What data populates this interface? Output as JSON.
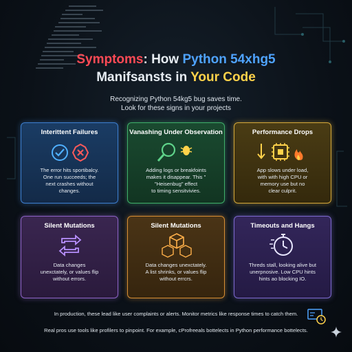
{
  "title": {
    "part1": "Symptoms",
    "part2": ": How ",
    "part3": "Python 54xhg5",
    "part4": "Manifsansts in ",
    "part5": "Your Code"
  },
  "subtitle": {
    "line1": "Recognizing Python 54kg5 bug saves time.",
    "line2": "Look for these signs in your projects"
  },
  "cards": [
    {
      "title": "Interittent Failures",
      "lines": [
        "The error hits sportibalcy.",
        "One run succeeds; the",
        "next crashes without",
        "changes."
      ],
      "icon": "check-x-icon"
    },
    {
      "title": "Vanashing Under Observation",
      "lines": [
        "Adding logs or breakfoints",
        "makes it disappear. This \"",
        "\"Heisenbug\" effect",
        "to timing sensitvivies."
      ],
      "icon": "magnifier-bug-icon"
    },
    {
      "title": "Performance Drops",
      "lines": [
        "App slows under load,",
        "with with high CPU or",
        "memory use but no",
        "clear culprit."
      ],
      "icon": "cpu-flame-icon"
    },
    {
      "title": "Silent Mutations",
      "lines": [
        "Data changes",
        "unexctately, or values flip",
        "without errors."
      ],
      "icon": "swap-arrows-icon"
    },
    {
      "title": "Silent Mutations",
      "lines": [
        "Data changes unexctately.",
        "A list shrinks, or values flip",
        "without errcrs."
      ],
      "icon": "cubes-icon"
    },
    {
      "title": "Timeouts and Hangs",
      "lines": [
        "Threds stall, looking alive but",
        "unerpnosive. Low CPU hints",
        "hints ao blocking IO."
      ],
      "icon": "stopwatch-icon"
    }
  ],
  "footer": {
    "line1": "In production, these lead like user complaints or alerts. Monitor metrics like response times to catch them.",
    "line2": "Real pros use tools like profilers to pinpoint. For example, cProfreeals bottelects in Python performance bottelects."
  },
  "colors": {
    "red": "#ff4a55",
    "blue": "#4fa3ff",
    "yellow": "#ffd24a",
    "card_blue": "#3d7fd0",
    "card_green": "#3fb06a",
    "card_gold": "#d6a93a",
    "card_purple": "#8d63c6",
    "card_orange": "#d98f34",
    "card_violet": "#7d6ad0"
  }
}
